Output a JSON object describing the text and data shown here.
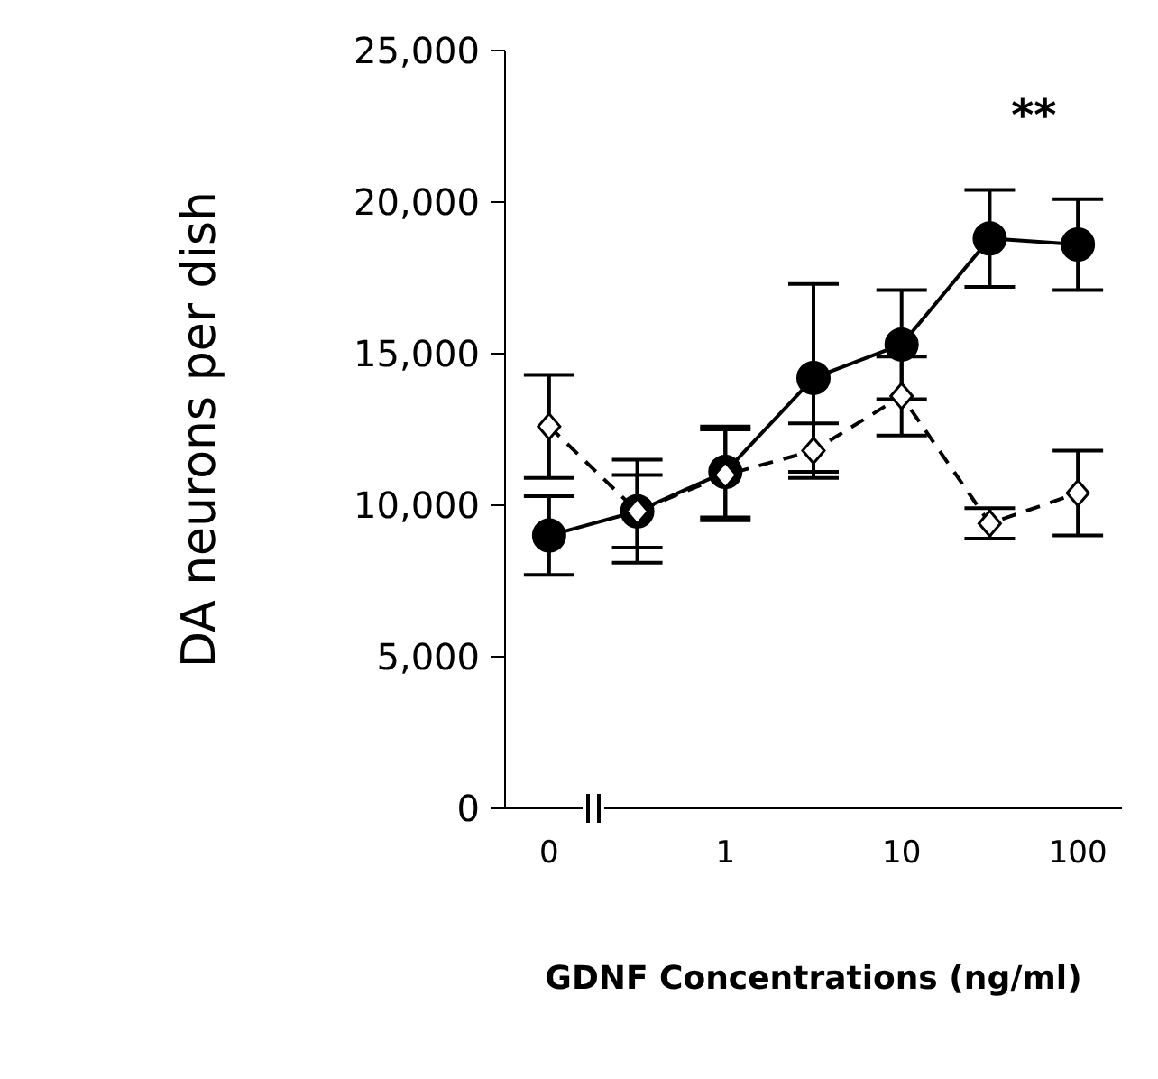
{
  "chart_data": {
    "type": "line",
    "xlabel": "GDNF Concentrations (ng/ml)",
    "ylabel": "DA neurons per dish",
    "categories": [
      "0",
      null,
      "1",
      null,
      "10",
      null,
      "100"
    ],
    "ylim": [
      0,
      25000
    ],
    "yticks": [
      {
        "value": 0,
        "label": "0"
      },
      {
        "value": 5000,
        "label": "5,000"
      },
      {
        "value": 10000,
        "label": "10,000"
      },
      {
        "value": 15000,
        "label": "15,000"
      },
      {
        "value": 20000,
        "label": "20,000"
      },
      {
        "value": 25000,
        "label": "25,000"
      }
    ],
    "grid": false,
    "legend": false,
    "series": [
      {
        "color": "#000000",
        "marker": "circle",
        "line_style": "solid",
        "values": [
          9000,
          9800,
          11100,
          14200,
          15300,
          18800,
          18600
        ],
        "errors": [
          1300,
          1700,
          1500,
          3100,
          1800,
          1600,
          1500
        ]
      },
      {
        "color": "#000000",
        "marker": "diamond",
        "line_style": "dashed",
        "values": [
          12600,
          9800,
          11000,
          11800,
          13600,
          9400,
          10400
        ],
        "errors": [
          1700,
          1200,
          1500,
          900,
          1300,
          500,
          1400
        ]
      }
    ],
    "annotations": [
      "**"
    ]
  }
}
